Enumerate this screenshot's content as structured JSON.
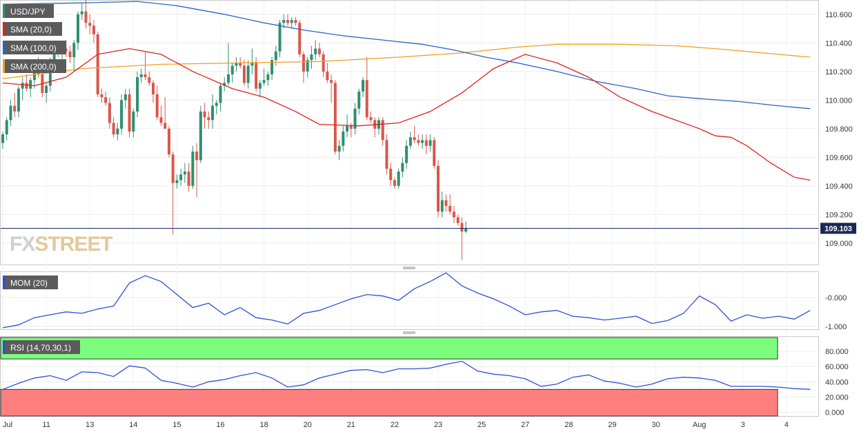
{
  "symbol": "USD/JPY",
  "colors": {
    "up": "#2f8f6f",
    "down": "#d9574a",
    "sma20": "#e0201a",
    "sma100": "#2a63c6",
    "sma200": "#f0a020",
    "momentum": "#2a4fd8",
    "rsi": "#2a4fd8",
    "rsi_overbought_zone": "#7cfc7c",
    "rsi_oversold_zone": "#ff7f7f",
    "price_line": "#1a2a55",
    "watermark": "#d9d9d9"
  },
  "watermark": {
    "part1": "FX",
    "part2": "STREET"
  },
  "chart_data": [
    {
      "type": "candlestick",
      "title": "USD/JPY",
      "ylim": [
        108.85,
        110.7
      ],
      "yticks": [
        "110.600",
        "110.400",
        "110.200",
        "110.000",
        "109.800",
        "109.600",
        "109.400",
        "109.200",
        "109.000"
      ],
      "last_price": "109.103",
      "last_price_value": 109.103,
      "x_tick_labels": [
        "Jul",
        "11",
        "13",
        "14",
        "15",
        "16",
        "18",
        "20",
        "21",
        "22",
        "23",
        "25",
        "27",
        "28",
        "29",
        "30",
        "Aug",
        "3",
        "4"
      ],
      "x_tick_positions": [
        0,
        11,
        22,
        33,
        44,
        55,
        66,
        77,
        88,
        99,
        110,
        121,
        132,
        143,
        154,
        165,
        176,
        187,
        198
      ],
      "candles": [
        [
          109.7,
          109.78,
          109.66,
          109.76
        ],
        [
          109.76,
          109.88,
          109.72,
          109.86
        ],
        [
          109.86,
          110.0,
          109.82,
          109.96
        ],
        [
          109.96,
          110.05,
          109.88,
          109.92
        ],
        [
          109.92,
          110.1,
          109.88,
          110.08
        ],
        [
          110.08,
          110.16,
          110.0,
          110.12
        ],
        [
          110.12,
          110.18,
          110.06,
          110.08
        ],
        [
          110.08,
          110.16,
          110.02,
          110.14
        ],
        [
          110.14,
          110.26,
          110.08,
          110.22
        ],
        [
          110.22,
          110.3,
          110.16,
          110.18
        ],
        [
          110.18,
          110.22,
          110.02,
          110.05
        ],
        [
          110.05,
          110.12,
          109.98,
          110.1
        ],
        [
          110.1,
          110.3,
          110.06,
          110.28
        ],
        [
          110.28,
          110.38,
          110.24,
          110.34
        ],
        [
          110.34,
          110.4,
          110.3,
          110.32
        ],
        [
          110.32,
          110.4,
          110.28,
          110.36
        ],
        [
          110.36,
          110.42,
          110.3,
          110.34
        ],
        [
          110.34,
          110.38,
          110.26,
          110.3
        ],
        [
          110.3,
          110.42,
          110.2,
          110.4
        ],
        [
          110.4,
          110.62,
          110.35,
          110.6
        ],
        [
          110.6,
          110.68,
          110.56,
          110.62
        ],
        [
          110.62,
          110.7,
          110.5,
          110.54
        ],
        [
          110.54,
          110.6,
          110.46,
          110.52
        ],
        [
          110.52,
          110.56,
          110.4,
          110.46
        ],
        [
          110.46,
          110.48,
          110.02,
          110.04
        ],
        [
          110.04,
          110.08,
          109.98,
          110.02
        ],
        [
          110.02,
          110.06,
          109.96,
          109.98
        ],
        [
          109.98,
          110.02,
          109.8,
          109.84
        ],
        [
          109.84,
          109.88,
          109.74,
          109.76
        ],
        [
          109.76,
          109.84,
          109.72,
          109.8
        ],
        [
          109.8,
          110.04,
          109.76,
          110.0
        ],
        [
          110.0,
          110.08,
          109.94,
          110.04
        ],
        [
          110.04,
          110.08,
          109.74,
          109.78
        ],
        [
          109.78,
          109.94,
          109.74,
          109.92
        ],
        [
          109.92,
          110.2,
          109.88,
          110.16
        ],
        [
          110.16,
          110.22,
          110.12,
          110.18
        ],
        [
          110.18,
          110.34,
          110.14,
          110.16
        ],
        [
          110.16,
          110.2,
          110.1,
          110.12
        ],
        [
          110.12,
          110.14,
          109.98,
          110.04
        ],
        [
          110.04,
          110.1,
          109.86,
          109.88
        ],
        [
          109.88,
          109.96,
          109.82,
          109.84
        ],
        [
          109.84,
          110.02,
          109.8,
          109.8
        ],
        [
          109.8,
          109.82,
          109.6,
          109.62
        ],
        [
          109.62,
          109.64,
          109.06,
          109.42
        ],
        [
          109.42,
          109.48,
          109.38,
          109.44
        ],
        [
          109.44,
          109.52,
          109.4,
          109.48
        ],
        [
          109.48,
          109.56,
          109.42,
          109.5
        ],
        [
          109.5,
          109.56,
          109.36,
          109.4
        ],
        [
          109.4,
          109.68,
          109.38,
          109.64
        ],
        [
          109.64,
          109.7,
          109.32,
          109.58
        ],
        [
          109.58,
          109.96,
          109.56,
          109.92
        ],
        [
          109.92,
          109.98,
          109.8,
          109.88
        ],
        [
          109.88,
          109.92,
          109.8,
          109.86
        ],
        [
          109.86,
          110.04,
          109.8,
          109.96
        ],
        [
          109.96,
          110.0,
          109.9,
          109.98
        ],
        [
          109.98,
          110.12,
          109.92,
          110.1
        ],
        [
          110.1,
          110.16,
          110.06,
          110.12
        ],
        [
          110.12,
          110.4,
          110.1,
          110.18
        ],
        [
          110.18,
          110.26,
          110.12,
          110.24
        ],
        [
          110.24,
          110.3,
          110.2,
          110.26
        ],
        [
          110.26,
          110.3,
          110.22,
          110.24
        ],
        [
          110.24,
          110.28,
          110.1,
          110.12
        ],
        [
          110.12,
          110.28,
          110.08,
          110.24
        ],
        [
          110.24,
          110.36,
          110.18,
          110.26
        ],
        [
          110.26,
          110.3,
          110.06,
          110.08
        ],
        [
          110.08,
          110.14,
          110.02,
          110.12
        ],
        [
          110.12,
          110.22,
          110.1,
          110.14
        ],
        [
          110.14,
          110.2,
          110.1,
          110.18
        ],
        [
          110.18,
          110.3,
          110.14,
          110.28
        ],
        [
          110.28,
          110.38,
          110.24,
          110.34
        ],
        [
          110.34,
          110.56,
          110.3,
          110.54
        ],
        [
          110.54,
          110.6,
          110.5,
          110.56
        ],
        [
          110.56,
          110.6,
          110.52,
          110.54
        ],
        [
          110.54,
          110.58,
          110.5,
          110.56
        ],
        [
          110.56,
          110.58,
          110.52,
          110.54
        ],
        [
          110.54,
          110.56,
          110.3,
          110.32
        ],
        [
          110.32,
          110.34,
          110.12,
          110.2
        ],
        [
          110.2,
          110.3,
          110.16,
          110.28
        ],
        [
          110.28,
          110.38,
          110.22,
          110.32
        ],
        [
          110.32,
          110.42,
          110.28,
          110.36
        ],
        [
          110.36,
          110.4,
          110.3,
          110.32
        ],
        [
          110.32,
          110.34,
          110.16,
          110.2
        ],
        [
          110.2,
          110.26,
          110.12,
          110.14
        ],
        [
          110.14,
          110.18,
          109.98,
          110.12
        ],
        [
          110.12,
          110.14,
          109.62,
          109.64
        ],
        [
          109.64,
          109.72,
          109.58,
          109.68
        ],
        [
          109.68,
          109.82,
          109.64,
          109.78
        ],
        [
          109.78,
          109.9,
          109.74,
          109.82
        ],
        [
          109.82,
          109.84,
          109.74,
          109.8
        ],
        [
          109.8,
          109.98,
          109.76,
          109.94
        ],
        [
          109.94,
          110.08,
          109.9,
          110.06
        ],
        [
          110.06,
          110.16,
          110.02,
          110.14
        ],
        [
          110.14,
          110.3,
          109.86,
          109.88
        ],
        [
          109.88,
          109.92,
          109.84,
          109.86
        ],
        [
          109.86,
          109.88,
          109.74,
          109.8
        ],
        [
          109.8,
          109.88,
          109.76,
          109.86
        ],
        [
          109.86,
          109.88,
          109.68,
          109.72
        ],
        [
          109.72,
          109.76,
          109.48,
          109.52
        ],
        [
          109.52,
          109.56,
          109.4,
          109.44
        ],
        [
          109.44,
          109.46,
          109.38,
          109.4
        ],
        [
          109.4,
          109.52,
          109.38,
          109.5
        ],
        [
          109.5,
          109.6,
          109.46,
          109.56
        ],
        [
          109.56,
          109.72,
          109.52,
          109.68
        ],
        [
          109.68,
          109.78,
          109.66,
          109.74
        ],
        [
          109.74,
          109.82,
          109.7,
          109.72
        ],
        [
          109.72,
          109.76,
          109.68,
          109.7
        ],
        [
          109.7,
          109.76,
          109.66,
          109.72
        ],
        [
          109.72,
          109.76,
          109.62,
          109.68
        ],
        [
          109.68,
          109.76,
          109.64,
          109.72
        ],
        [
          109.72,
          109.74,
          109.52,
          109.54
        ],
        [
          109.54,
          109.58,
          109.18,
          109.22
        ],
        [
          109.22,
          109.36,
          109.18,
          109.3
        ],
        [
          109.3,
          109.34,
          109.22,
          109.26
        ],
        [
          109.26,
          109.34,
          109.2,
          109.22
        ],
        [
          109.22,
          109.26,
          109.14,
          109.18
        ],
        [
          109.18,
          109.2,
          109.12,
          109.14
        ],
        [
          109.14,
          109.18,
          108.88,
          109.08
        ],
        [
          109.08,
          109.15,
          109.07,
          109.103
        ]
      ],
      "sma20": [
        [
          0,
          110.12
        ],
        [
          8,
          110.1
        ],
        [
          16,
          110.16
        ],
        [
          24,
          110.32
        ],
        [
          32,
          110.36
        ],
        [
          40,
          110.32
        ],
        [
          48,
          110.2
        ],
        [
          58,
          110.08
        ],
        [
          66,
          110.02
        ],
        [
          74,
          109.92
        ],
        [
          80,
          109.83
        ],
        [
          90,
          109.82
        ],
        [
          100,
          109.84
        ],
        [
          108,
          109.92
        ],
        [
          116,
          110.05
        ],
        [
          124,
          110.22
        ],
        [
          132,
          110.32
        ],
        [
          140,
          110.26
        ],
        [
          148,
          110.16
        ],
        [
          156,
          110.02
        ],
        [
          164,
          109.92
        ],
        [
          170,
          109.86
        ],
        [
          176,
          109.8
        ],
        [
          180,
          109.75
        ],
        [
          184,
          109.74
        ],
        [
          188,
          109.68
        ],
        [
          194,
          109.56
        ],
        [
          200,
          109.46
        ],
        [
          204,
          109.44
        ]
      ],
      "sma100": [
        [
          0,
          110.67
        ],
        [
          20,
          110.68
        ],
        [
          34,
          110.69
        ],
        [
          44,
          110.66
        ],
        [
          56,
          110.6
        ],
        [
          66,
          110.54
        ],
        [
          76,
          110.49
        ],
        [
          86,
          110.45
        ],
        [
          96,
          110.42
        ],
        [
          106,
          110.39
        ],
        [
          114,
          110.35
        ],
        [
          122,
          110.3
        ],
        [
          130,
          110.26
        ],
        [
          140,
          110.2
        ],
        [
          150,
          110.13
        ],
        [
          160,
          110.08
        ],
        [
          168,
          110.03
        ],
        [
          176,
          110.01
        ],
        [
          186,
          109.99
        ],
        [
          196,
          109.96
        ],
        [
          204,
          109.94
        ]
      ],
      "sma200": [
        [
          0,
          110.15
        ],
        [
          20,
          110.22
        ],
        [
          40,
          110.25
        ],
        [
          60,
          110.26
        ],
        [
          80,
          110.27
        ],
        [
          100,
          110.3
        ],
        [
          116,
          110.33
        ],
        [
          130,
          110.37
        ],
        [
          140,
          110.39
        ],
        [
          156,
          110.39
        ],
        [
          170,
          110.38
        ],
        [
          180,
          110.36
        ],
        [
          192,
          110.33
        ],
        [
          204,
          110.3
        ]
      ],
      "legend": [
        "USD/JPY",
        "SMA (20,0)",
        "SMA (100,0)",
        "SMA (200,0)"
      ]
    },
    {
      "type": "line",
      "title": "MOM (20)",
      "ylim": [
        -1.1,
        0.9
      ],
      "yticks": [
        "-0.000",
        "-1.000"
      ],
      "ytick_values": [
        0,
        -1
      ],
      "x": [
        0,
        4,
        8,
        12,
        16,
        20,
        24,
        28,
        32,
        36,
        40,
        44,
        48,
        52,
        56,
        60,
        64,
        68,
        72,
        76,
        80,
        84,
        88,
        92,
        96,
        100,
        104,
        108,
        112,
        116,
        120,
        124,
        128,
        132,
        136,
        140,
        144,
        148,
        152,
        156,
        160,
        164,
        168,
        172,
        176,
        180,
        184,
        188,
        192,
        196,
        200,
        204
      ],
      "values": [
        -1.05,
        -0.95,
        -0.7,
        -0.6,
        -0.5,
        -0.55,
        -0.4,
        -0.3,
        0.5,
        0.75,
        0.55,
        0.1,
        -0.35,
        -0.2,
        -0.6,
        -0.35,
        -0.7,
        -0.78,
        -0.92,
        -0.55,
        -0.45,
        -0.25,
        -0.05,
        0.1,
        0.05,
        -0.1,
        0.3,
        0.55,
        0.85,
        0.4,
        0.15,
        -0.05,
        -0.3,
        -0.6,
        -0.5,
        -0.45,
        -0.65,
        -0.7,
        -0.78,
        -0.72,
        -0.65,
        -0.9,
        -0.8,
        -0.55,
        0.05,
        -0.25,
        -0.82,
        -0.6,
        -0.72,
        -0.65,
        -0.75,
        -0.45
      ]
    },
    {
      "type": "line",
      "title": "RSI (14,70,30,1)",
      "ylim": [
        -5,
        100
      ],
      "yticks": [
        "80.000",
        "60.000",
        "40.000",
        "20.000",
        "0.000"
      ],
      "ytick_values": [
        80,
        60,
        40,
        20,
        0
      ],
      "overbought": 70,
      "oversold": 30,
      "x": [
        0,
        4,
        8,
        12,
        16,
        20,
        24,
        28,
        32,
        36,
        40,
        44,
        48,
        52,
        56,
        60,
        64,
        68,
        72,
        76,
        80,
        84,
        88,
        92,
        96,
        100,
        104,
        108,
        112,
        116,
        120,
        124,
        128,
        132,
        136,
        140,
        144,
        148,
        152,
        156,
        160,
        164,
        168,
        172,
        176,
        180,
        184,
        188,
        192,
        196,
        200,
        204
      ],
      "values": [
        30,
        38,
        45,
        48,
        42,
        53,
        52,
        47,
        61,
        58,
        42,
        38,
        33,
        40,
        43,
        48,
        52,
        45,
        33,
        36,
        45,
        50,
        55,
        56,
        52,
        57,
        57,
        58,
        63,
        67,
        54,
        50,
        48,
        44,
        34,
        37,
        46,
        49,
        41,
        38,
        33,
        37,
        44,
        46,
        45,
        42,
        34,
        34,
        34,
        33,
        31,
        30
      ]
    }
  ]
}
